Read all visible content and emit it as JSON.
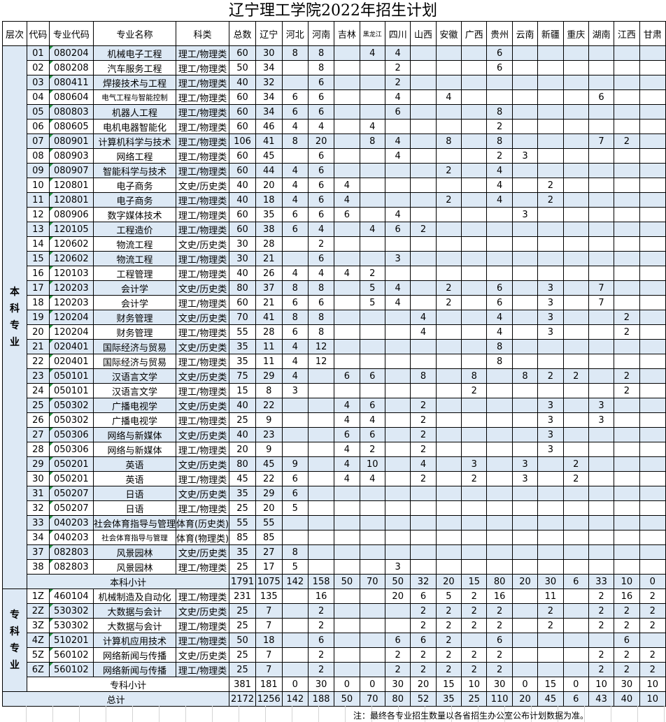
{
  "title": "辽宁理工学院2022年招生计划",
  "headers": [
    "层次",
    "代码",
    "专业代码",
    "专业名称",
    "科类",
    "总数",
    "辽宁",
    "河北",
    "河南",
    "吉林",
    "黑龙江",
    "四川",
    "山西",
    "安徽",
    "广西",
    "贵州",
    "云南",
    "新疆",
    "重庆",
    "湖南",
    "江西",
    "甘肃"
  ],
  "sections": [
    {
      "label": "本科专业",
      "rows": [
        [
          "01",
          "080204",
          "机械电子工程",
          "理工/物理类",
          60,
          30,
          8,
          8,
          "",
          4,
          4,
          "",
          "",
          "",
          6
        ],
        [
          "02",
          "080208",
          "汽车服务工程",
          "理工/物理类",
          50,
          34,
          "",
          8,
          "",
          "",
          2,
          "",
          "",
          "",
          6
        ],
        [
          "03",
          "080411",
          "焊接技术与工程",
          "理工/物理类",
          40,
          32,
          "",
          6,
          "",
          "",
          2
        ],
        [
          "04",
          "080604",
          "电气工程与智能控制",
          "理工/物理类",
          60,
          34,
          6,
          6,
          "",
          "",
          4,
          "",
          4,
          "",
          "",
          "",
          "",
          "",
          6
        ],
        [
          "05",
          "080803",
          "机器人工程",
          "理工/物理类",
          60,
          34,
          6,
          6,
          "",
          "",
          6,
          "",
          "",
          "",
          8
        ],
        [
          "06",
          "080605",
          "电机电器智能化",
          "理工/物理类",
          60,
          46,
          4,
          4,
          "",
          4,
          "",
          "",
          "",
          "",
          2
        ],
        [
          "07",
          "080901",
          "计算机科学与技术",
          "理工/物理类",
          106,
          41,
          8,
          20,
          "",
          8,
          4,
          "",
          8,
          "",
          8,
          "",
          "",
          "",
          7,
          2
        ],
        [
          "08",
          "080903",
          "网络工程",
          "理工/物理类",
          60,
          45,
          "",
          6,
          "",
          "",
          4,
          "",
          "",
          "",
          2,
          3
        ],
        [
          "09",
          "080907",
          "智能科学与技术",
          "理工/物理类",
          60,
          44,
          4,
          6,
          "",
          "",
          "",
          "",
          2,
          "",
          4
        ],
        [
          "10",
          "120801",
          "电子商务",
          "文史/历史类",
          40,
          20,
          4,
          6,
          4,
          "",
          "",
          "",
          "",
          "",
          4,
          "",
          2
        ],
        [
          "11",
          "120801",
          "电子商务",
          "理工/物理类",
          40,
          18,
          4,
          6,
          4,
          "",
          "",
          "",
          2,
          "",
          4,
          "",
          2
        ],
        [
          "12",
          "080906",
          "数字媒体技术",
          "理工/物理类",
          60,
          35,
          6,
          6,
          6,
          "",
          4,
          "",
          "",
          "",
          "",
          3
        ],
        [
          "13",
          "120105",
          "工程造价",
          "理工/物理类",
          60,
          38,
          6,
          4,
          "",
          4,
          6,
          2
        ],
        [
          "14",
          "120602",
          "物流工程",
          "文史/历史类",
          30,
          28,
          "",
          2
        ],
        [
          "15",
          "120602",
          "物流工程",
          "理工/物理类",
          30,
          21,
          "",
          6,
          "",
          "",
          3
        ],
        [
          "16",
          "120103",
          "工程管理",
          "理工/物理类",
          40,
          26,
          4,
          4,
          4,
          2
        ],
        [
          "17",
          "120203",
          "会计学",
          "文史/历史类",
          80,
          37,
          8,
          8,
          "",
          5,
          4,
          "",
          2,
          "",
          6,
          "",
          3,
          "",
          7
        ],
        [
          "18",
          "120203",
          "会计学",
          "理工/物理类",
          60,
          21,
          6,
          6,
          "",
          5,
          4,
          "",
          2,
          "",
          6,
          "",
          3,
          "",
          7
        ],
        [
          "19",
          "120204",
          "财务管理",
          "文史/历史类",
          70,
          41,
          8,
          8,
          "",
          "",
          "",
          4,
          "",
          "",
          4,
          "",
          3,
          "",
          "",
          2
        ],
        [
          "20",
          "120204",
          "财务管理",
          "理工/物理类",
          55,
          28,
          6,
          8,
          "",
          "",
          "",
          4,
          "",
          "",
          4,
          "",
          3,
          "",
          "",
          2
        ],
        [
          "21",
          "020401",
          "国际经济与贸易",
          "文史/历史类",
          35,
          11,
          4,
          12,
          "",
          "",
          "",
          "",
          "",
          "",
          8
        ],
        [
          "22",
          "020401",
          "国际经济与贸易",
          "理工/物理类",
          35,
          11,
          4,
          12,
          "",
          "",
          "",
          "",
          "",
          "",
          8
        ],
        [
          "23",
          "050101",
          "汉语言文学",
          "文史/历史类",
          75,
          29,
          4,
          "",
          6,
          6,
          "",
          8,
          "",
          8,
          "",
          8,
          2,
          2,
          "",
          2
        ],
        [
          "24",
          "050101",
          "汉语言文学",
          "理工/物理类",
          15,
          8,
          3,
          "",
          "",
          "",
          "",
          "",
          "",
          2,
          "",
          "",
          "",
          "",
          "",
          2
        ],
        [
          "25",
          "050302",
          "广播电视学",
          "文史/历史类",
          40,
          22,
          "",
          "",
          4,
          6,
          "",
          2,
          "",
          "",
          "",
          "",
          3,
          "",
          3
        ],
        [
          "26",
          "050302",
          "广播电视学",
          "理工/物理类",
          25,
          9,
          "",
          "",
          4,
          4,
          "",
          2,
          "",
          "",
          "",
          "",
          3,
          "",
          3
        ],
        [
          "27",
          "050306",
          "网络与新媒体",
          "文史/历史类",
          40,
          23,
          "",
          "",
          6,
          6,
          "",
          2,
          "",
          "",
          "",
          "",
          3
        ],
        [
          "28",
          "050306",
          "网络与新媒体",
          "理工/物理类",
          20,
          9,
          "",
          "",
          4,
          2,
          "",
          2,
          "",
          "",
          "",
          "",
          3
        ],
        [
          "29",
          "050201",
          "英语",
          "文史/历史类",
          80,
          45,
          9,
          "",
          4,
          10,
          "",
          4,
          "",
          3,
          "",
          3,
          "",
          2
        ],
        [
          "30",
          "050201",
          "英语",
          "理工/物理类",
          45,
          22,
          6,
          "",
          4,
          4,
          "",
          2,
          "",
          2,
          "",
          3,
          "",
          2
        ],
        [
          "31",
          "050207",
          "日语",
          "文史/历史类",
          35,
          29,
          6
        ],
        [
          "32",
          "050207",
          "日语",
          "理工/物理类",
          25,
          20,
          5
        ],
        [
          "33",
          "040203",
          "社会体育指导与管理",
          "体育(历史类)",
          55,
          55
        ],
        [
          "34",
          "040203",
          "社会体育指导与管理",
          "体育(物理类)",
          85,
          85
        ],
        [
          "37",
          "082803",
          "风景园林",
          "文史/历史类",
          35,
          27,
          8
        ],
        [
          "38",
          "082803",
          "风景园林",
          "理工/物理类",
          25,
          17,
          5,
          "",
          "",
          "",
          3
        ]
      ],
      "subtotal": {
        "label": "本科小计",
        "values": [
          1791,
          1075,
          142,
          158,
          50,
          70,
          50,
          32,
          20,
          15,
          80,
          20,
          30,
          6,
          33,
          10,
          0
        ]
      }
    },
    {
      "label": "专科专业",
      "rows": [
        [
          "1Z",
          "460104",
          "机械制造及自动化",
          "理工/物理类",
          231,
          135,
          "",
          16,
          "",
          "",
          20,
          6,
          5,
          2,
          16,
          "",
          11,
          "",
          2,
          16,
          2
        ],
        [
          "2Z",
          "530302",
          "大数据与会计",
          "文史/历史类",
          25,
          7,
          "",
          2,
          "",
          "",
          "",
          2,
          2,
          2,
          2,
          "",
          2,
          "",
          2,
          2,
          2
        ],
        [
          "3Z",
          "530302",
          "大数据与会计",
          "理工/物理类",
          25,
          7,
          "",
          2,
          "",
          "",
          "",
          2,
          2,
          2,
          2,
          "",
          2,
          "",
          2,
          2,
          2
        ],
        [
          "4Z",
          "510201",
          "计算机应用技术",
          "理工/物理类",
          50,
          18,
          "",
          6,
          "",
          "",
          6,
          6,
          2,
          "",
          6,
          "",
          "",
          "",
          "",
          6,
          ""
        ],
        [
          "5Z",
          "560102",
          "网络新闻与传播",
          "文史/历史类",
          25,
          7,
          "",
          2,
          "",
          "",
          2,
          2,
          2,
          2,
          2,
          "",
          "",
          "",
          2,
          2,
          2
        ],
        [
          "6Z",
          "560102",
          "网络新闻与传播",
          "理工/物理类",
          25,
          7,
          "",
          2,
          "",
          "",
          2,
          2,
          2,
          2,
          2,
          "",
          "",
          "",
          2,
          2,
          2
        ]
      ],
      "subtotal": {
        "label": "专科小计",
        "values": [
          381,
          181,
          0,
          30,
          0,
          0,
          30,
          20,
          15,
          10,
          30,
          0,
          15,
          0,
          10,
          30,
          10
        ]
      }
    }
  ],
  "total": {
    "label": "总计",
    "values": [
      2172,
      1256,
      142,
      188,
      50,
      70,
      80,
      52,
      35,
      25,
      110,
      20,
      45,
      6,
      43,
      40,
      10
    ]
  },
  "note": "注：最终各专业招生数量以各省招生办公室公布计划数据为准。",
  "colors": {
    "stripe": "#dde9f5",
    "grid": "#000000",
    "corner_marker": "#1f8f3a"
  }
}
